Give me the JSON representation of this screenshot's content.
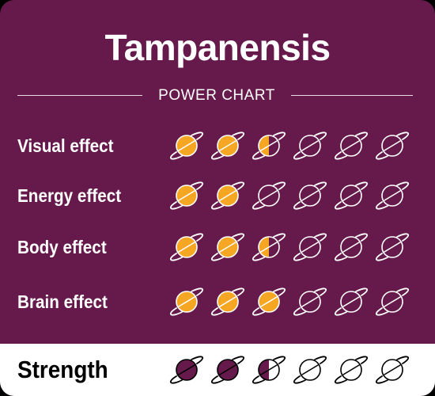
{
  "card": {
    "title": "Tampanensis",
    "subtitle": "POWER CHART"
  },
  "colors": {
    "background": "#661a4c",
    "filled_planet": "#f5a623",
    "strength_planet": "#661a4c",
    "outline": "#ffffff"
  },
  "max_rating": 6,
  "effects": [
    {
      "label": "Visual effect",
      "rating": 2.5
    },
    {
      "label": "Energy effect",
      "rating": 2
    },
    {
      "label": "Body effect",
      "rating": 2.5
    },
    {
      "label": "Brain effect",
      "rating": 3
    }
  ],
  "strength": {
    "label": "Strength",
    "rating": 2.5
  }
}
